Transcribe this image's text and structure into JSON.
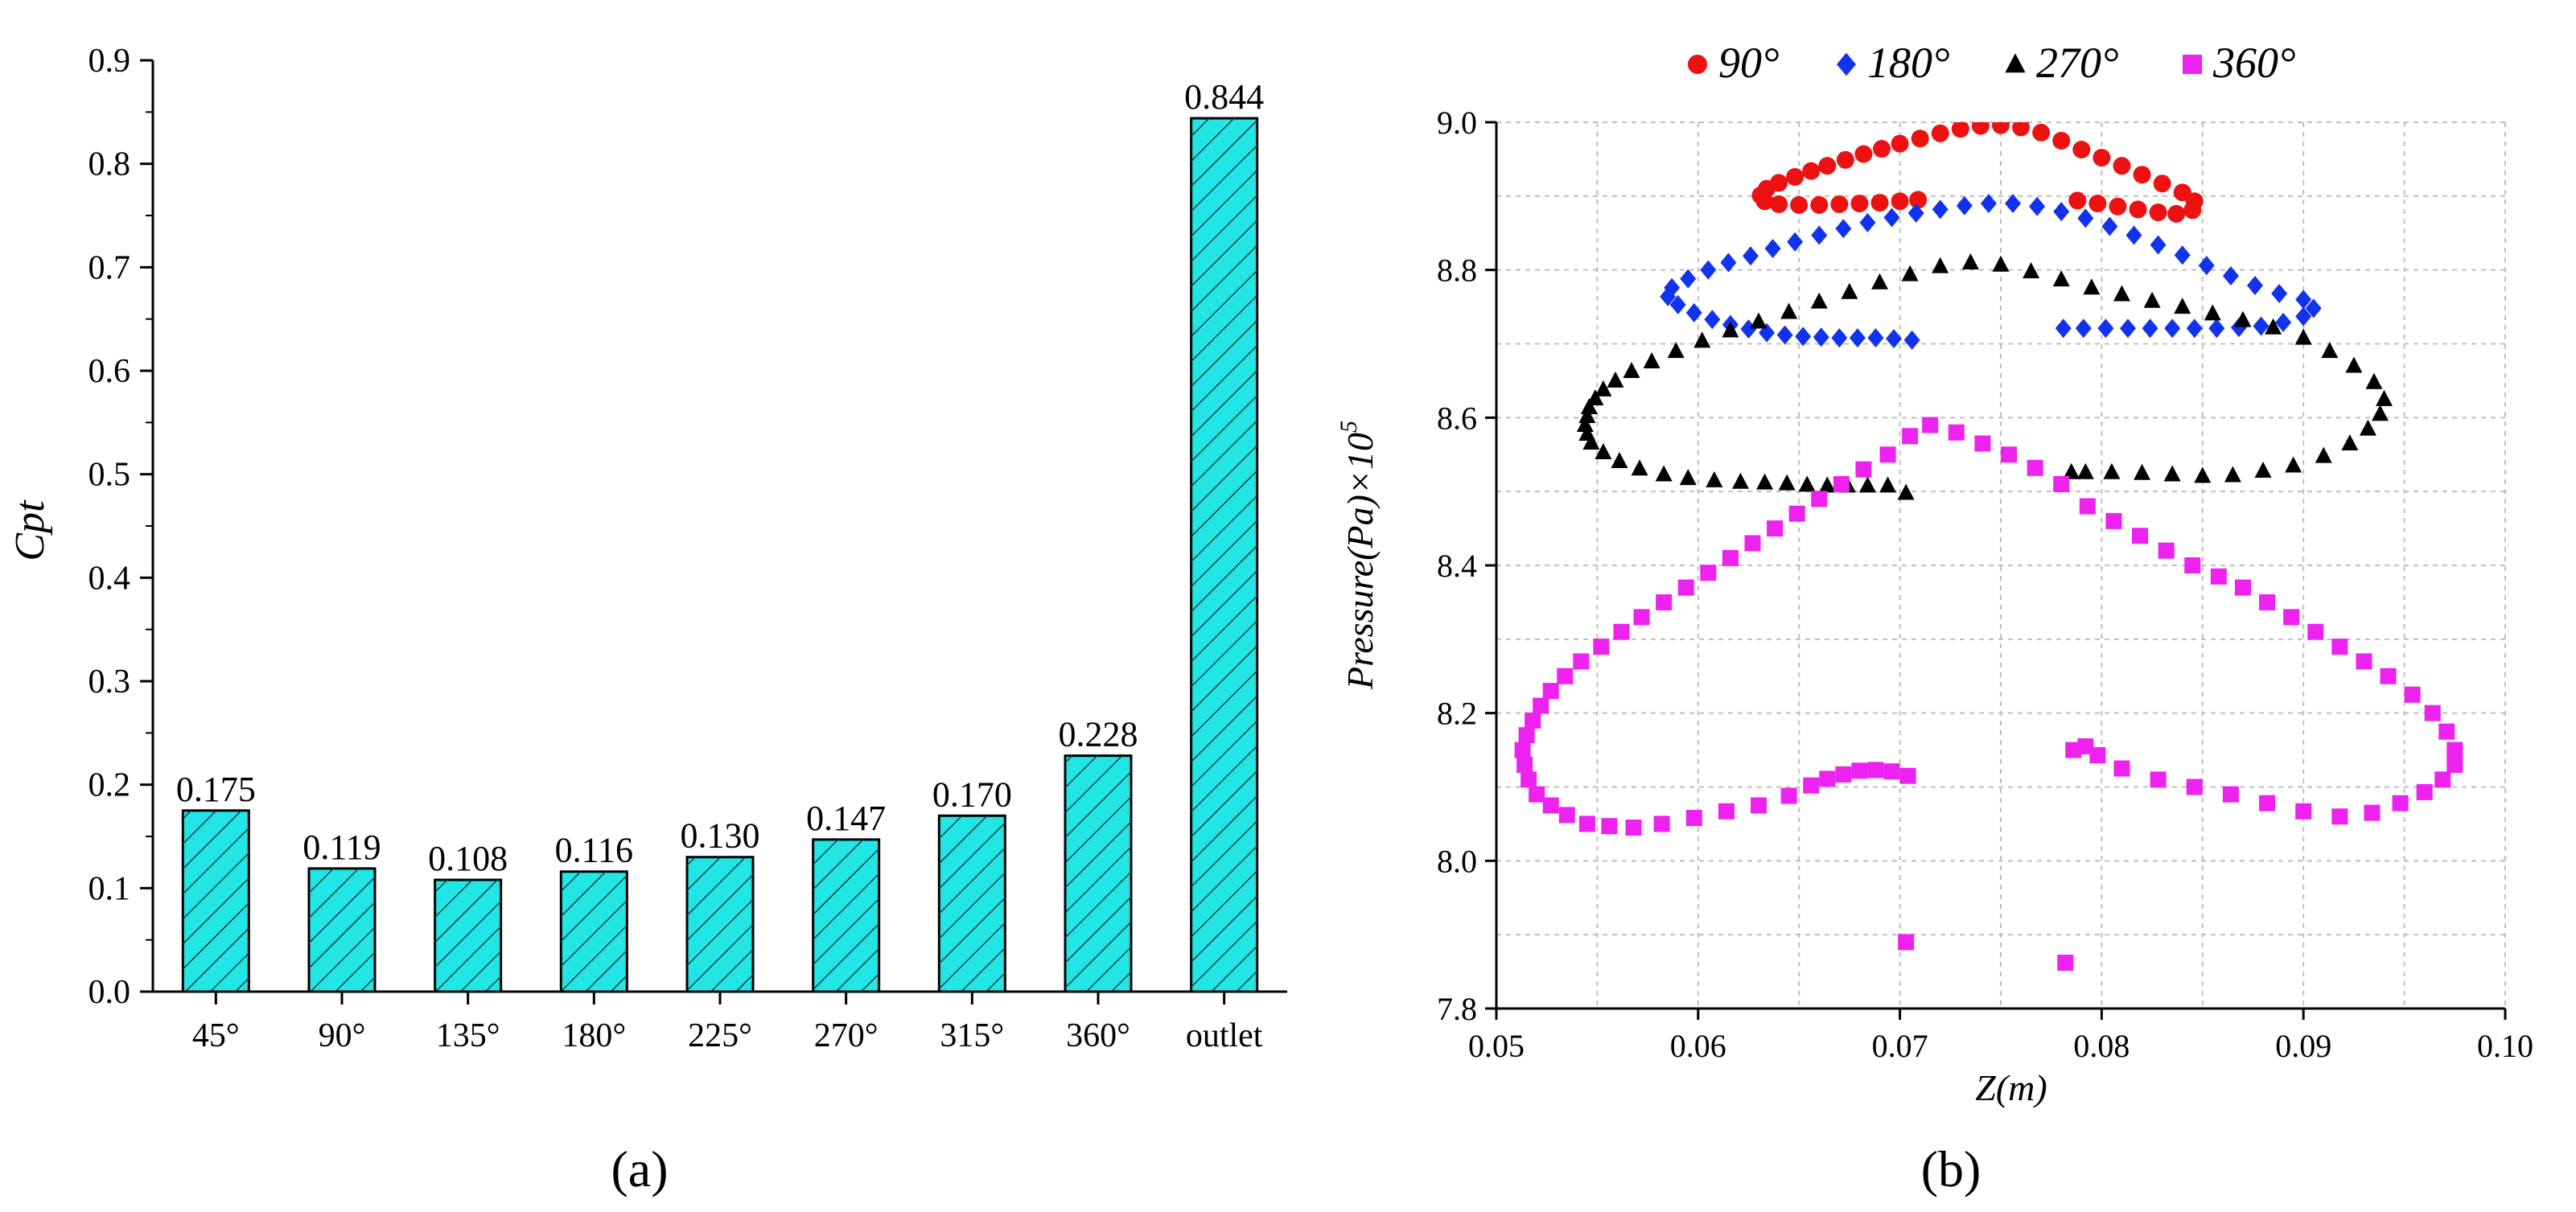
{
  "panel_labels": {
    "a": "(a)",
    "b": "(b)"
  },
  "colors": {
    "bar_fill": "#22e6e6",
    "hatch": "#1a3d3d",
    "series_90": "#ee1111",
    "series_180": "#1133ee",
    "series_270": "#000000",
    "series_360": "#ee22ee",
    "grid": "#bfbfbf"
  },
  "chart_data": [
    {
      "type": "bar",
      "panel": "a",
      "title": "",
      "xlabel": "",
      "ylabel": "Cpt",
      "categories": [
        "45°",
        "90°",
        "135°",
        "180°",
        "225°",
        "270°",
        "315°",
        "360°",
        "outlet"
      ],
      "values": [
        0.175,
        0.119,
        0.108,
        0.116,
        0.13,
        0.147,
        0.17,
        0.228,
        0.844
      ],
      "value_labels": [
        "0.175",
        "0.119",
        "0.108",
        "0.116",
        "0.130",
        "0.147",
        "0.170",
        "0.228",
        "0.844"
      ],
      "ylim": [
        0,
        0.9
      ],
      "yticks": [
        "0.0",
        "0.1",
        "0.2",
        "0.3",
        "0.4",
        "0.5",
        "0.6",
        "0.7",
        "0.8",
        "0.9"
      ],
      "grid": false
    },
    {
      "type": "scatter",
      "panel": "b",
      "title": "",
      "xlabel": "Z(m)",
      "ylabel_main": "Pressure(Pa)×10",
      "ylabel_exp": "5",
      "xlim": [
        0.05,
        0.1
      ],
      "ylim": [
        7.8,
        9.0
      ],
      "xticks": [
        "0.05",
        "0.06",
        "0.07",
        "0.08",
        "0.09",
        "0.10"
      ],
      "yticks": [
        "7.8",
        "8.0",
        "8.2",
        "8.4",
        "8.6",
        "8.8",
        "9.0"
      ],
      "grid": true,
      "legend_position": "top",
      "series": [
        {
          "name": "90°",
          "marker": "circle",
          "points": [
            [
              0.0709,
              8.895
            ],
            [
              0.07,
              8.893
            ],
            [
              0.069,
              8.891
            ],
            [
              0.068,
              8.89
            ],
            [
              0.067,
              8.889
            ],
            [
              0.066,
              8.888
            ],
            [
              0.065,
              8.888
            ],
            [
              0.064,
              8.889
            ],
            [
              0.0633,
              8.893
            ],
            [
              0.0631,
              8.901
            ],
            [
              0.0634,
              8.91
            ],
            [
              0.064,
              8.918
            ],
            [
              0.0648,
              8.926
            ],
            [
              0.0656,
              8.934
            ],
            [
              0.0664,
              8.941
            ],
            [
              0.0673,
              8.949
            ],
            [
              0.0682,
              8.957
            ],
            [
              0.0691,
              8.964
            ],
            [
              0.07,
              8.971
            ],
            [
              0.071,
              8.978
            ],
            [
              0.072,
              8.985
            ],
            [
              0.073,
              8.991
            ],
            [
              0.074,
              8.995
            ],
            [
              0.075,
              8.996
            ],
            [
              0.076,
              8.993
            ],
            [
              0.077,
              8.986
            ],
            [
              0.078,
              8.975
            ],
            [
              0.079,
              8.963
            ],
            [
              0.08,
              8.952
            ],
            [
              0.081,
              8.941
            ],
            [
              0.082,
              8.929
            ],
            [
              0.083,
              8.917
            ],
            [
              0.084,
              8.905
            ],
            [
              0.0846,
              8.893
            ],
            [
              0.0845,
              8.881
            ],
            [
              0.0837,
              8.876
            ],
            [
              0.0828,
              8.878
            ],
            [
              0.0818,
              8.882
            ],
            [
              0.0808,
              8.886
            ],
            [
              0.0798,
              8.89
            ],
            [
              0.0788,
              8.894
            ]
          ]
        },
        {
          "name": "180°",
          "marker": "diamond",
          "points": [
            [
              0.0706,
              8.705
            ],
            [
              0.0697,
              8.707
            ],
            [
              0.0688,
              8.708
            ],
            [
              0.0679,
              8.708
            ],
            [
              0.067,
              8.708
            ],
            [
              0.0661,
              8.709
            ],
            [
              0.0652,
              8.71
            ],
            [
              0.0643,
              8.712
            ],
            [
              0.0634,
              8.715
            ],
            [
              0.0625,
              8.72
            ],
            [
              0.0616,
              8.726
            ],
            [
              0.0607,
              8.733
            ],
            [
              0.0598,
              8.742
            ],
            [
              0.059,
              8.753
            ],
            [
              0.0585,
              8.764
            ],
            [
              0.0587,
              8.776
            ],
            [
              0.0595,
              8.788
            ],
            [
              0.0605,
              8.8
            ],
            [
              0.0615,
              8.81
            ],
            [
              0.0626,
              8.819
            ],
            [
              0.0637,
              8.829
            ],
            [
              0.0648,
              8.838
            ],
            [
              0.066,
              8.847
            ],
            [
              0.0672,
              8.856
            ],
            [
              0.0684,
              8.864
            ],
            [
              0.0696,
              8.871
            ],
            [
              0.0708,
              8.877
            ],
            [
              0.072,
              8.882
            ],
            [
              0.0732,
              8.887
            ],
            [
              0.0744,
              8.89
            ],
            [
              0.0756,
              8.89
            ],
            [
              0.0768,
              8.886
            ],
            [
              0.078,
              8.879
            ],
            [
              0.0792,
              8.87
            ],
            [
              0.0804,
              8.859
            ],
            [
              0.0816,
              8.847
            ],
            [
              0.0828,
              8.834
            ],
            [
              0.084,
              8.82
            ],
            [
              0.0852,
              8.806
            ],
            [
              0.0864,
              8.792
            ],
            [
              0.0876,
              8.779
            ],
            [
              0.0888,
              8.768
            ],
            [
              0.09,
              8.76
            ],
            [
              0.0905,
              8.748
            ],
            [
              0.09,
              8.737
            ],
            [
              0.089,
              8.729
            ],
            [
              0.0879,
              8.724
            ],
            [
              0.0868,
              8.722
            ],
            [
              0.0857,
              8.721
            ],
            [
              0.0846,
              8.721
            ],
            [
              0.0835,
              8.721
            ],
            [
              0.0824,
              8.721
            ],
            [
              0.0813,
              8.721
            ],
            [
              0.0802,
              8.721
            ],
            [
              0.0791,
              8.721
            ],
            [
              0.0781,
              8.721
            ]
          ]
        },
        {
          "name": "270°",
          "marker": "triangle",
          "points": [
            [
              0.0703,
              8.498
            ],
            [
              0.0694,
              8.508
            ],
            [
              0.0684,
              8.508
            ],
            [
              0.0674,
              8.508
            ],
            [
              0.0664,
              8.508
            ],
            [
              0.0654,
              8.509
            ],
            [
              0.0644,
              8.511
            ],
            [
              0.0633,
              8.512
            ],
            [
              0.0621,
              8.513
            ],
            [
              0.0608,
              8.515
            ],
            [
              0.0595,
              8.518
            ],
            [
              0.0583,
              8.523
            ],
            [
              0.0571,
              8.531
            ],
            [
              0.0561,
              8.541
            ],
            [
              0.0553,
              8.553
            ],
            [
              0.0547,
              8.566
            ],
            [
              0.0545,
              8.578
            ],
            [
              0.0544,
              8.59
            ],
            [
              0.0545,
              8.602
            ],
            [
              0.0546,
              8.614
            ],
            [
              0.0549,
              8.626
            ],
            [
              0.0553,
              8.638
            ],
            [
              0.0559,
              8.65
            ],
            [
              0.0567,
              8.663
            ],
            [
              0.0577,
              8.676
            ],
            [
              0.0589,
              8.69
            ],
            [
              0.0602,
              8.704
            ],
            [
              0.0616,
              8.718
            ],
            [
              0.063,
              8.73
            ],
            [
              0.0645,
              8.743
            ],
            [
              0.066,
              8.757
            ],
            [
              0.0675,
              8.77
            ],
            [
              0.069,
              8.783
            ],
            [
              0.0705,
              8.794
            ],
            [
              0.072,
              8.805
            ],
            [
              0.0735,
              8.81
            ],
            [
              0.075,
              8.807
            ],
            [
              0.0765,
              8.798
            ],
            [
              0.078,
              8.787
            ],
            [
              0.0795,
              8.776
            ],
            [
              0.081,
              8.767
            ],
            [
              0.0825,
              8.758
            ],
            [
              0.084,
              8.75
            ],
            [
              0.0855,
              8.741
            ],
            [
              0.087,
              8.732
            ],
            [
              0.0885,
              8.722
            ],
            [
              0.09,
              8.708
            ],
            [
              0.0913,
              8.69
            ],
            [
              0.0925,
              8.67
            ],
            [
              0.0935,
              8.648
            ],
            [
              0.094,
              8.625
            ],
            [
              0.0938,
              8.605
            ],
            [
              0.0932,
              8.585
            ],
            [
              0.0923,
              8.565
            ],
            [
              0.091,
              8.548
            ],
            [
              0.0895,
              8.535
            ],
            [
              0.088,
              8.528
            ],
            [
              0.0865,
              8.522
            ],
            [
              0.085,
              8.521
            ],
            [
              0.0835,
              8.523
            ],
            [
              0.082,
              8.525
            ],
            [
              0.0805,
              8.526
            ],
            [
              0.0792,
              8.526
            ],
            [
              0.0785,
              8.526
            ]
          ]
        },
        {
          "name": "360°",
          "marker": "square",
          "points": [
            [
              0.0704,
              8.115
            ],
            [
              0.0696,
              8.121
            ],
            [
              0.0688,
              8.123
            ],
            [
              0.068,
              8.122
            ],
            [
              0.0672,
              8.117
            ],
            [
              0.0664,
              8.111
            ],
            [
              0.0656,
              8.102
            ],
            [
              0.0645,
              8.088
            ],
            [
              0.063,
              8.075
            ],
            [
              0.0614,
              8.067
            ],
            [
              0.0598,
              8.058
            ],
            [
              0.0582,
              8.05
            ],
            [
              0.0568,
              8.045
            ],
            [
              0.0556,
              8.047
            ],
            [
              0.0545,
              8.05
            ],
            [
              0.0535,
              8.062
            ],
            [
              0.0527,
              8.075
            ],
            [
              0.052,
              8.09
            ],
            [
              0.0516,
              8.11
            ],
            [
              0.0514,
              8.13
            ],
            [
              0.0513,
              8.15
            ],
            [
              0.0515,
              8.17
            ],
            [
              0.0518,
              8.19
            ],
            [
              0.0522,
              8.21
            ],
            [
              0.0527,
              8.23
            ],
            [
              0.0534,
              8.25
            ],
            [
              0.0542,
              8.27
            ],
            [
              0.0552,
              8.29
            ],
            [
              0.0562,
              8.31
            ],
            [
              0.0572,
              8.33
            ],
            [
              0.0583,
              8.35
            ],
            [
              0.0594,
              8.37
            ],
            [
              0.0605,
              8.39
            ],
            [
              0.0616,
              8.41
            ],
            [
              0.0627,
              8.43
            ],
            [
              0.0638,
              8.45
            ],
            [
              0.0649,
              8.47
            ],
            [
              0.066,
              8.49
            ],
            [
              0.0671,
              8.51
            ],
            [
              0.0682,
              8.53
            ],
            [
              0.0694,
              8.55
            ],
            [
              0.0705,
              8.575
            ],
            [
              0.0715,
              8.59
            ],
            [
              0.0728,
              8.58
            ],
            [
              0.0741,
              8.565
            ],
            [
              0.0754,
              8.55
            ],
            [
              0.0767,
              8.532
            ],
            [
              0.078,
              8.51
            ],
            [
              0.0793,
              8.48
            ],
            [
              0.0806,
              8.46
            ],
            [
              0.0819,
              8.44
            ],
            [
              0.0832,
              8.42
            ],
            [
              0.0845,
              8.4
            ],
            [
              0.0858,
              8.385
            ],
            [
              0.087,
              8.37
            ],
            [
              0.0882,
              8.35
            ],
            [
              0.0894,
              8.33
            ],
            [
              0.0906,
              8.31
            ],
            [
              0.0918,
              8.29
            ],
            [
              0.093,
              8.27
            ],
            [
              0.0942,
              8.25
            ],
            [
              0.0954,
              8.225
            ],
            [
              0.0964,
              8.2
            ],
            [
              0.0971,
              8.175
            ],
            [
              0.0975,
              8.15
            ],
            [
              0.0975,
              8.13
            ],
            [
              0.0969,
              8.11
            ],
            [
              0.096,
              8.093
            ],
            [
              0.0948,
              8.078
            ],
            [
              0.0934,
              8.065
            ],
            [
              0.0918,
              8.06
            ],
            [
              0.09,
              8.067
            ],
            [
              0.0882,
              8.078
            ],
            [
              0.0864,
              8.09
            ],
            [
              0.0846,
              8.1
            ],
            [
              0.0828,
              8.11
            ],
            [
              0.081,
              8.125
            ],
            [
              0.0798,
              8.143
            ],
            [
              0.0792,
              8.155
            ],
            [
              0.0786,
              8.15
            ],
            [
              0.0703,
              7.89
            ],
            [
              0.0782,
              7.862
            ]
          ]
        }
      ]
    }
  ]
}
